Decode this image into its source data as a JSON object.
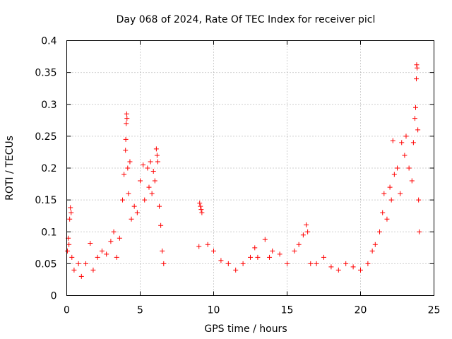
{
  "chart_data": {
    "type": "scatter",
    "title": "Day 068 of 2024, Rate Of TEC Index for receiver picl",
    "xlabel": "GPS time / hours",
    "ylabel": "ROTI / TECUs",
    "xlim": [
      0,
      25
    ],
    "ylim": [
      0,
      0.4
    ],
    "xticks": [
      0,
      5,
      10,
      15,
      20,
      25
    ],
    "xtick_labels": [
      "0",
      "5",
      "10",
      "15",
      "20",
      "25"
    ],
    "yticks": [
      0,
      0.05,
      0.1,
      0.15,
      0.2,
      0.25,
      0.3,
      0.35,
      0.4
    ],
    "ytick_labels": [
      "0",
      "0.05",
      "0.1",
      "0.15",
      "0.2",
      "0.25",
      "0.3",
      "0.35",
      "0.4"
    ],
    "grid": true,
    "marker": "+",
    "color": "#ff0000",
    "series": [
      {
        "name": "ROTI",
        "points": [
          [
            0.05,
            0.07
          ],
          [
            0.1,
            0.09
          ],
          [
            0.15,
            0.08
          ],
          [
            0.2,
            0.12
          ],
          [
            0.25,
            0.138
          ],
          [
            0.3,
            0.13
          ],
          [
            0.35,
            0.06
          ],
          [
            0.5,
            0.04
          ],
          [
            0.8,
            0.05
          ],
          [
            1.0,
            0.03
          ],
          [
            1.3,
            0.05
          ],
          [
            1.6,
            0.082
          ],
          [
            1.8,
            0.04
          ],
          [
            2.1,
            0.06
          ],
          [
            2.4,
            0.07
          ],
          [
            2.7,
            0.065
          ],
          [
            3.0,
            0.085
          ],
          [
            3.2,
            0.1
          ],
          [
            3.4,
            0.06
          ],
          [
            3.6,
            0.09
          ],
          [
            3.8,
            0.15
          ],
          [
            3.9,
            0.19
          ],
          [
            4.0,
            0.228
          ],
          [
            4.02,
            0.245
          ],
          [
            4.05,
            0.27
          ],
          [
            4.08,
            0.285
          ],
          [
            4.1,
            0.278
          ],
          [
            4.15,
            0.2
          ],
          [
            4.2,
            0.16
          ],
          [
            4.3,
            0.21
          ],
          [
            4.4,
            0.12
          ],
          [
            4.6,
            0.14
          ],
          [
            4.8,
            0.13
          ],
          [
            5.0,
            0.18
          ],
          [
            5.2,
            0.205
          ],
          [
            5.3,
            0.15
          ],
          [
            5.5,
            0.2
          ],
          [
            5.6,
            0.17
          ],
          [
            5.7,
            0.21
          ],
          [
            5.8,
            0.16
          ],
          [
            5.9,
            0.195
          ],
          [
            6.0,
            0.18
          ],
          [
            6.1,
            0.23
          ],
          [
            6.15,
            0.22
          ],
          [
            6.2,
            0.21
          ],
          [
            6.3,
            0.14
          ],
          [
            6.4,
            0.11
          ],
          [
            6.5,
            0.07
          ],
          [
            6.6,
            0.05
          ],
          [
            9.05,
            0.145
          ],
          [
            9.1,
            0.14
          ],
          [
            9.15,
            0.135
          ],
          [
            9.2,
            0.13
          ],
          [
            9.0,
            0.077
          ],
          [
            9.6,
            0.08
          ],
          [
            10.0,
            0.07
          ],
          [
            10.5,
            0.055
          ],
          [
            11.0,
            0.05
          ],
          [
            11.5,
            0.04
          ],
          [
            12.0,
            0.05
          ],
          [
            12.5,
            0.06
          ],
          [
            12.8,
            0.075
          ],
          [
            13.0,
            0.06
          ],
          [
            13.5,
            0.088
          ],
          [
            13.8,
            0.06
          ],
          [
            14.0,
            0.07
          ],
          [
            14.5,
            0.065
          ],
          [
            15.0,
            0.05
          ],
          [
            15.5,
            0.07
          ],
          [
            15.8,
            0.08
          ],
          [
            16.1,
            0.095
          ],
          [
            16.3,
            0.111
          ],
          [
            16.4,
            0.1
          ],
          [
            16.6,
            0.05
          ],
          [
            17.0,
            0.05
          ],
          [
            17.5,
            0.06
          ],
          [
            18.0,
            0.045
          ],
          [
            18.5,
            0.04
          ],
          [
            19.0,
            0.05
          ],
          [
            19.5,
            0.045
          ],
          [
            20.0,
            0.04
          ],
          [
            20.5,
            0.05
          ],
          [
            20.8,
            0.07
          ],
          [
            21.0,
            0.08
          ],
          [
            21.3,
            0.1
          ],
          [
            21.5,
            0.13
          ],
          [
            21.6,
            0.16
          ],
          [
            21.8,
            0.12
          ],
          [
            22.0,
            0.17
          ],
          [
            22.1,
            0.15
          ],
          [
            22.2,
            0.243
          ],
          [
            22.3,
            0.19
          ],
          [
            22.5,
            0.2
          ],
          [
            22.7,
            0.16
          ],
          [
            22.8,
            0.24
          ],
          [
            23.0,
            0.22
          ],
          [
            23.1,
            0.25
          ],
          [
            23.3,
            0.2
          ],
          [
            23.5,
            0.18
          ],
          [
            23.6,
            0.24
          ],
          [
            23.7,
            0.278
          ],
          [
            23.75,
            0.295
          ],
          [
            23.8,
            0.34
          ],
          [
            23.82,
            0.362
          ],
          [
            23.85,
            0.357
          ],
          [
            23.9,
            0.26
          ],
          [
            23.95,
            0.15
          ],
          [
            24.0,
            0.1
          ]
        ]
      }
    ]
  }
}
